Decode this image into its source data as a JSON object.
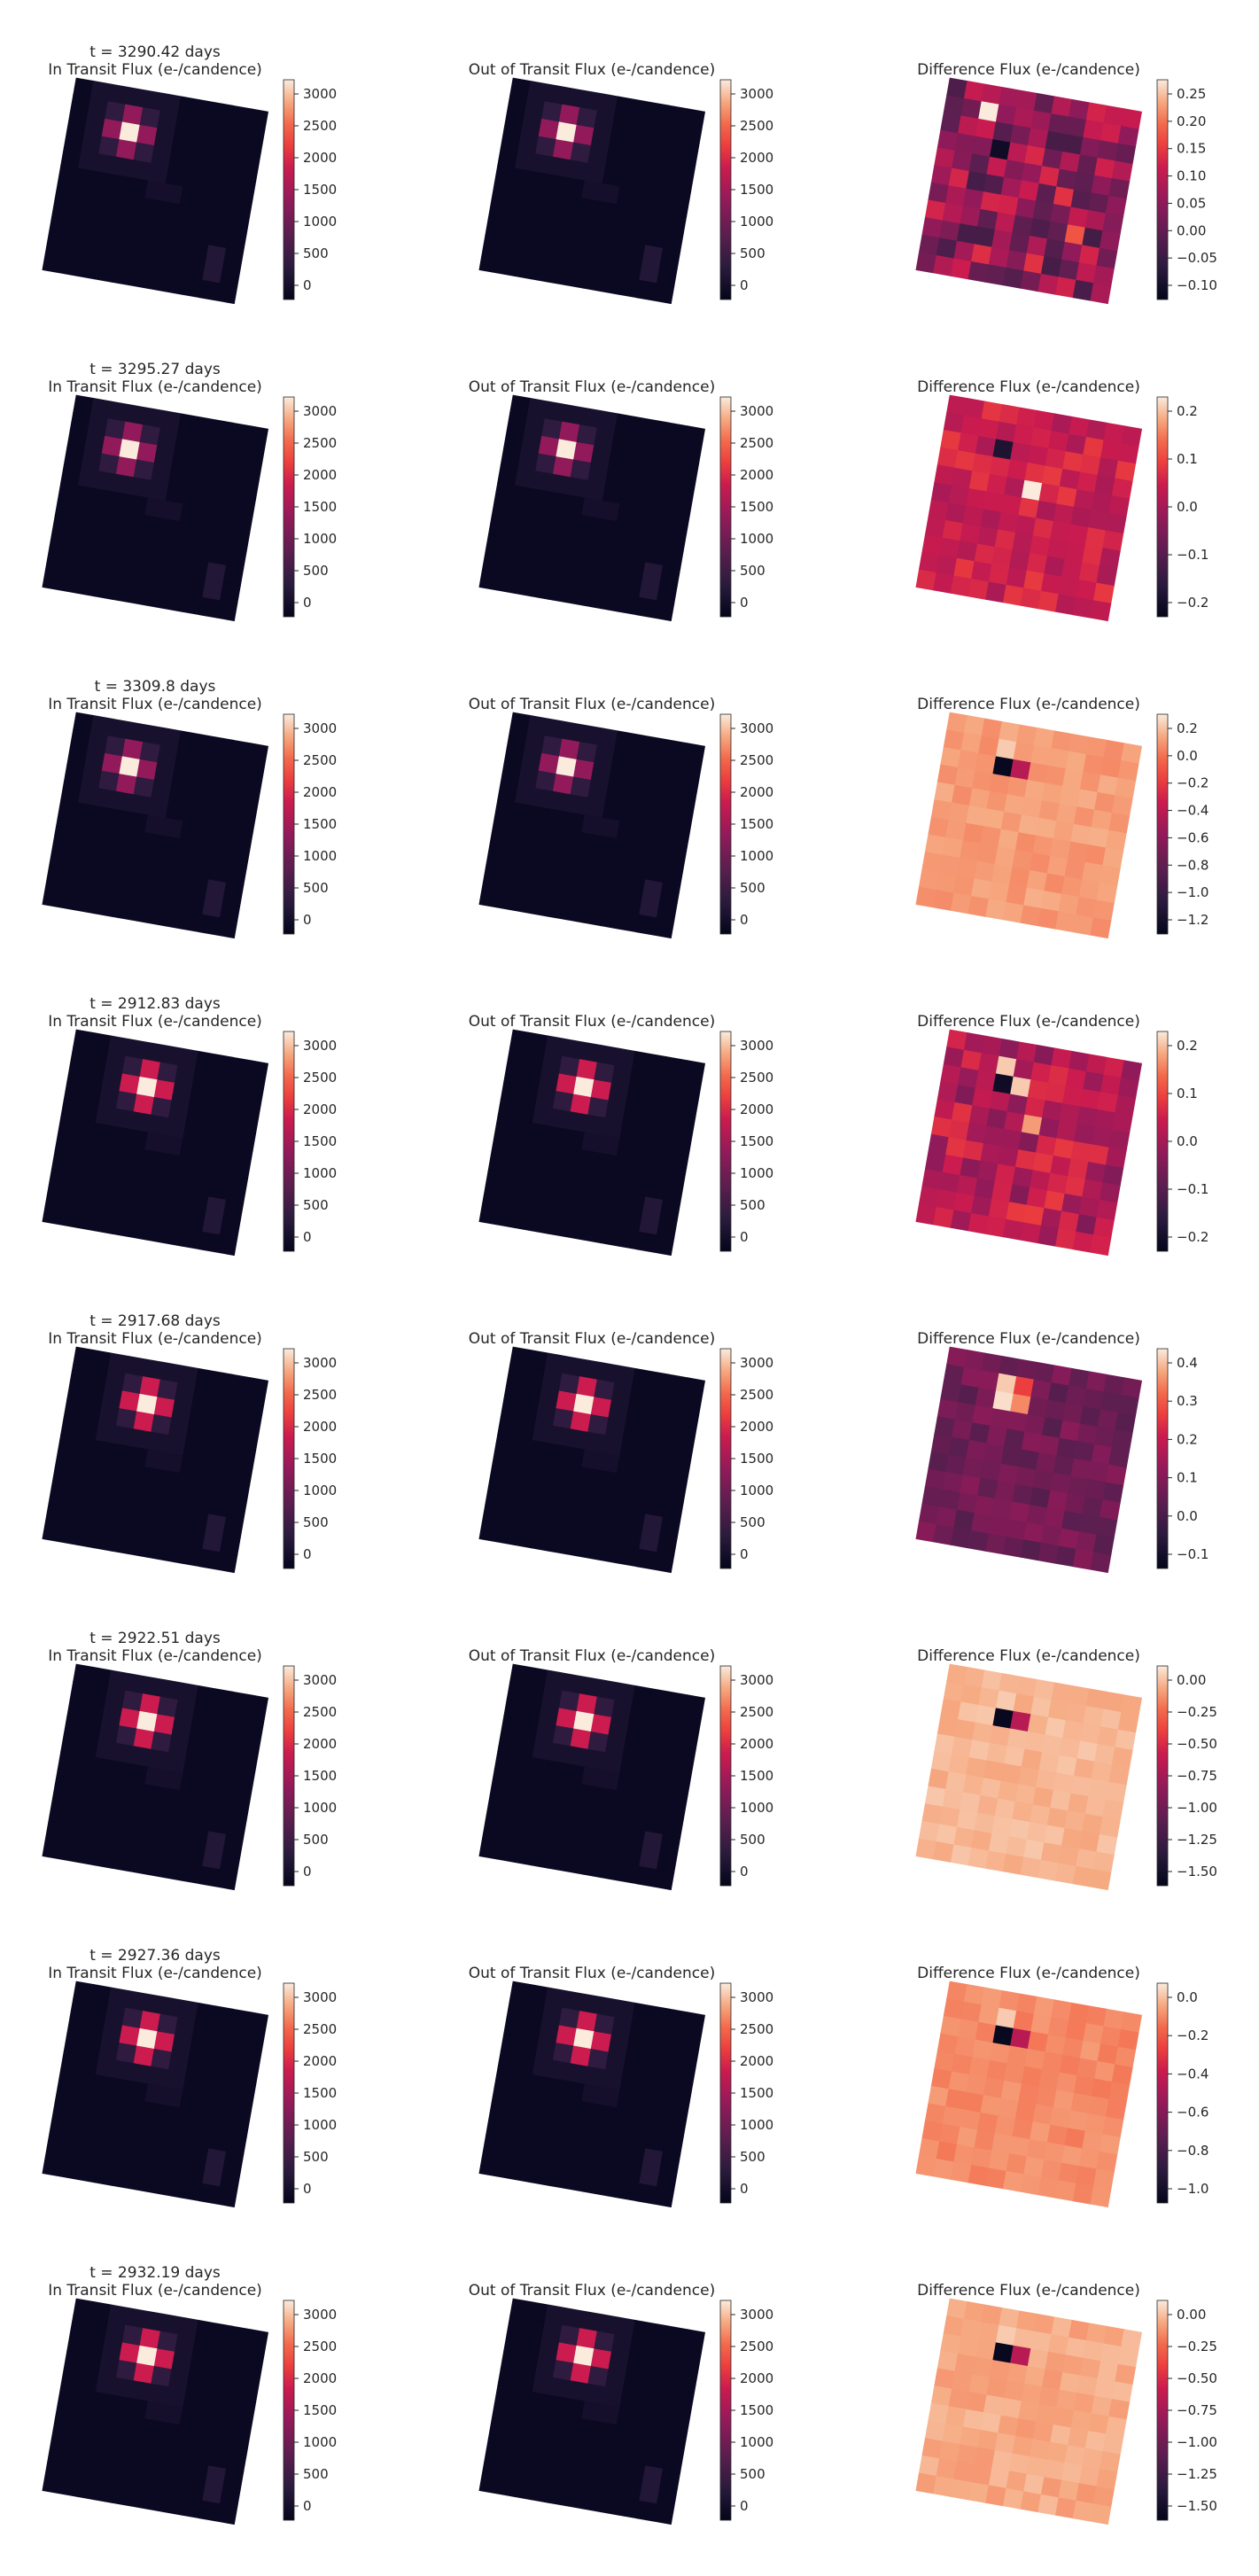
{
  "figure": {
    "colormap": "rocket",
    "rows": [
      {
        "time_label": "t = 3290.42 days",
        "in_title": "In Transit Flux (e-/candence)",
        "out_title": "Out of Transit Flux (e-/candence)",
        "diff_title": "Difference Flux (e-/candence)",
        "flux_ticks": [
          "0",
          "500",
          "1000",
          "1500",
          "2000",
          "2500",
          "3000"
        ],
        "diff_ticks": [
          "−0.10",
          "−0.05",
          "0.00",
          "0.05",
          "0.10",
          "0.15",
          "0.20",
          "0.25"
        ]
      },
      {
        "time_label": "t = 3295.27 days",
        "in_title": "In Transit Flux (e-/candence)",
        "out_title": "Out of Transit Flux (e-/candence)",
        "diff_title": "Difference Flux (e-/candence)",
        "flux_ticks": [
          "0",
          "500",
          "1000",
          "1500",
          "2000",
          "2500",
          "3000"
        ],
        "diff_ticks": [
          "−0.2",
          "−0.1",
          "0.0",
          "0.1",
          "0.2"
        ]
      },
      {
        "time_label": "t = 3309.8 days",
        "in_title": "In Transit Flux (e-/candence)",
        "out_title": "Out of Transit Flux (e-/candence)",
        "diff_title": "Difference Flux (e-/candence)",
        "flux_ticks": [
          "0",
          "500",
          "1000",
          "1500",
          "2000",
          "2500",
          "3000"
        ],
        "diff_ticks": [
          "−1.2",
          "−1.0",
          "−0.8",
          "−0.6",
          "−0.4",
          "−0.2",
          "0.0",
          "0.2"
        ]
      },
      {
        "time_label": "t = 2912.83 days",
        "in_title": "In Transit Flux (e-/candence)",
        "out_title": "Out of Transit Flux (e-/candence)",
        "diff_title": "Difference Flux (e-/candence)",
        "flux_ticks": [
          "0",
          "500",
          "1000",
          "1500",
          "2000",
          "2500",
          "3000"
        ],
        "diff_ticks": [
          "−0.2",
          "−0.1",
          "0.0",
          "0.1",
          "0.2"
        ]
      },
      {
        "time_label": "t = 2917.68 days",
        "in_title": "In Transit Flux (e-/candence)",
        "out_title": "Out of Transit Flux (e-/candence)",
        "diff_title": "Difference Flux (e-/candence)",
        "flux_ticks": [
          "0",
          "500",
          "1000",
          "1500",
          "2000",
          "2500",
          "3000"
        ],
        "diff_ticks": [
          "−0.1",
          "0.0",
          "0.1",
          "0.2",
          "0.3",
          "0.4"
        ]
      },
      {
        "time_label": "t = 2922.51 days",
        "in_title": "In Transit Flux (e-/candence)",
        "out_title": "Out of Transit Flux (e-/candence)",
        "diff_title": "Difference Flux (e-/candence)",
        "flux_ticks": [
          "0",
          "500",
          "1000",
          "1500",
          "2000",
          "2500",
          "3000"
        ],
        "diff_ticks": [
          "−1.50",
          "−1.25",
          "−1.00",
          "−0.75",
          "−0.50",
          "−0.25",
          "0.00"
        ]
      },
      {
        "time_label": "t = 2927.36 days",
        "in_title": "In Transit Flux (e-/candence)",
        "out_title": "Out of Transit Flux (e-/candence)",
        "diff_title": "Difference Flux (e-/candence)",
        "flux_ticks": [
          "0",
          "500",
          "1000",
          "1500",
          "2000",
          "2500",
          "3000"
        ],
        "diff_ticks": [
          "−1.0",
          "−0.8",
          "−0.6",
          "−0.4",
          "−0.2",
          "0.0"
        ]
      },
      {
        "time_label": "t = 2932.19 days",
        "in_title": "In Transit Flux (e-/candence)",
        "out_title": "Out of Transit Flux (e-/candence)",
        "diff_title": "Difference Flux (e-/candence)",
        "flux_ticks": [
          "0",
          "500",
          "1000",
          "1500",
          "2000",
          "2500",
          "3000"
        ],
        "diff_ticks": [
          "−1.50",
          "−1.25",
          "−1.00",
          "−0.75",
          "−0.50",
          "−0.25",
          "0.00"
        ]
      }
    ]
  },
  "chart_data": {
    "type": "heatmap",
    "layout": "8 rows x 3 columns of rotated pixel images with colorbars",
    "panels": [
      {
        "row": 1,
        "time": "t = 3290.42 days",
        "in_transit": {
          "colorbar_range": [
            0,
            3100
          ]
        },
        "out_of_transit": {
          "colorbar_range": [
            0,
            3100
          ]
        },
        "difference": {
          "colorbar_range": [
            -0.13,
            0.27
          ]
        }
      },
      {
        "row": 2,
        "time": "t = 3295.27 days",
        "in_transit": {
          "colorbar_range": [
            0,
            3100
          ]
        },
        "out_of_transit": {
          "colorbar_range": [
            0,
            3100
          ]
        },
        "difference": {
          "colorbar_range": [
            -0.3,
            0.22
          ]
        }
      },
      {
        "row": 3,
        "time": "t = 3309.8 days",
        "in_transit": {
          "colorbar_range": [
            0,
            3100
          ]
        },
        "out_of_transit": {
          "colorbar_range": [
            0,
            3100
          ]
        },
        "difference": {
          "colorbar_range": [
            -1.3,
            0.22
          ]
        }
      },
      {
        "row": 4,
        "time": "t = 2912.83 days",
        "in_transit": {
          "colorbar_range": [
            0,
            3450
          ]
        },
        "out_of_transit": {
          "colorbar_range": [
            0,
            3450
          ]
        },
        "difference": {
          "colorbar_range": [
            -0.2,
            0.24
          ]
        }
      },
      {
        "row": 5,
        "time": "t = 2917.68 days",
        "in_transit": {
          "colorbar_range": [
            0,
            3450
          ]
        },
        "out_of_transit": {
          "colorbar_range": [
            0,
            3450
          ]
        },
        "difference": {
          "colorbar_range": [
            -0.1,
            0.46
          ]
        }
      },
      {
        "row": 6,
        "time": "t = 2922.51 days",
        "in_transit": {
          "colorbar_range": [
            0,
            3450
          ]
        },
        "out_of_transit": {
          "colorbar_range": [
            0,
            3450
          ]
        },
        "difference": {
          "colorbar_range": [
            -1.6,
            0.1
          ]
        }
      },
      {
        "row": 7,
        "time": "t = 2927.36 days",
        "in_transit": {
          "colorbar_range": [
            0,
            3450
          ]
        },
        "out_of_transit": {
          "colorbar_range": [
            0,
            3450
          ]
        },
        "difference": {
          "colorbar_range": [
            -1.15,
            0.15
          ]
        }
      },
      {
        "row": 8,
        "time": "t = 2932.19 days",
        "in_transit": {
          "colorbar_range": [
            0,
            3450
          ]
        },
        "out_of_transit": {
          "colorbar_range": [
            0,
            3450
          ]
        },
        "difference": {
          "colorbar_range": [
            -1.6,
            0.2
          ]
        }
      }
    ]
  }
}
